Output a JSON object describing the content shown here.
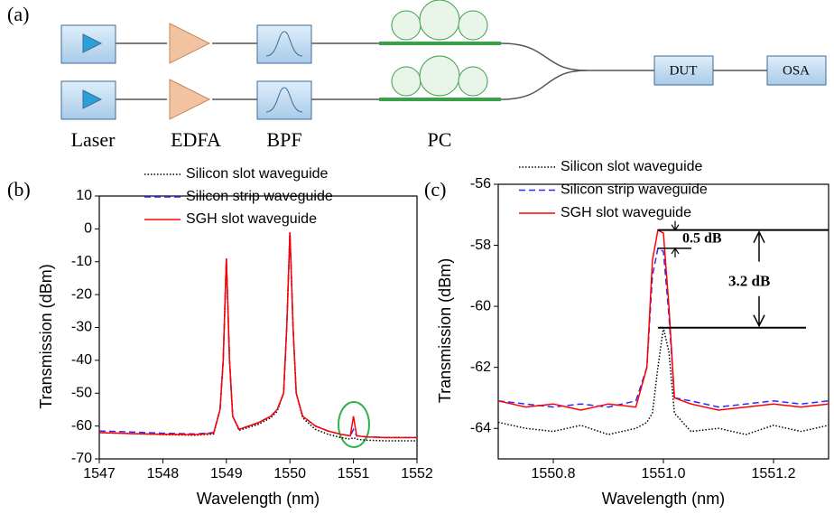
{
  "diagram": {
    "panel": "(a)",
    "components": [
      "Laser",
      "EDFA",
      "BPF",
      "PC"
    ],
    "dut": "DUT",
    "osa": "OSA"
  },
  "chart_data": [
    {
      "type": "line",
      "panel": "(b)",
      "x_label": "Wavelength (nm)",
      "y_label": "Transmission (dBm)",
      "xlim": [
        1547,
        1552
      ],
      "ylim": [
        -70,
        10
      ],
      "xticks": [
        1547,
        1548,
        1549,
        1550,
        1551,
        1552
      ],
      "yticks": [
        -70,
        -60,
        -50,
        -40,
        -30,
        -20,
        -10,
        0,
        10
      ],
      "x": [
        1547,
        1547.5,
        1548,
        1548.5,
        1548.8,
        1548.9,
        1548.95,
        1549,
        1549.05,
        1549.1,
        1549.2,
        1549.5,
        1549.7,
        1549.8,
        1549.9,
        1549.95,
        1550,
        1550.05,
        1550.1,
        1550.2,
        1550.4,
        1550.6,
        1550.8,
        1550.95,
        1551,
        1551.05,
        1551.2,
        1551.5,
        1552
      ],
      "series": [
        {
          "name": "Silicon slot waveguide",
          "color": "#000000",
          "style": "dotted",
          "values": [
            -62,
            -62.3,
            -62.6,
            -62.8,
            -62.4,
            -55,
            -40,
            -9,
            -40,
            -57,
            -61.3,
            -59.5,
            -57.5,
            -55.5,
            -50,
            -30,
            -1,
            -30,
            -50,
            -57.5,
            -61,
            -62.5,
            -63.5,
            -64,
            -63.5,
            -64,
            -64.3,
            -64.5,
            -64.5
          ]
        },
        {
          "name": "Silicon strip waveguide",
          "color": "#2a2aff",
          "style": "dashed",
          "values": [
            -61.5,
            -61.8,
            -62.2,
            -62.4,
            -62,
            -55,
            -40,
            -9,
            -40,
            -57,
            -61,
            -59,
            -57,
            -55,
            -50,
            -30,
            -1,
            -30,
            -50,
            -57,
            -60,
            -61.5,
            -62.5,
            -63,
            -61,
            -63,
            -63.3,
            -63.5,
            -63.5
          ]
        },
        {
          "name": "SGH slot waveguide",
          "color": "#ff0000",
          "style": "solid",
          "values": [
            -62,
            -62.3,
            -62.5,
            -62.6,
            -62.2,
            -55,
            -40,
            -9,
            -40,
            -57,
            -61,
            -59,
            -57,
            -55,
            -50,
            -30,
            -1,
            -30,
            -50,
            -57,
            -60,
            -61.5,
            -62.5,
            -63,
            -57,
            -63,
            -63.3,
            -63.5,
            -63.5
          ]
        }
      ]
    },
    {
      "type": "line",
      "panel": "(c)",
      "x_label": "Wavelength (nm)",
      "y_label": "Transmission (dBm)",
      "xlim": [
        1550.7,
        1551.3
      ],
      "ylim": [
        -65,
        -56
      ],
      "xticks": [
        1550.8,
        {
          "value": 1551,
          "label": "1551.0"
        },
        1551.2
      ],
      "yticks": [
        -64,
        -62,
        -60,
        -58,
        -56
      ],
      "annotations": [
        "0.5 dB",
        "3.2 dB"
      ],
      "x": [
        1550.7,
        1550.75,
        1550.8,
        1550.85,
        1550.9,
        1550.95,
        1550.97,
        1550.98,
        1550.99,
        1551,
        1551.01,
        1551.02,
        1551.05,
        1551.1,
        1551.15,
        1551.2,
        1551.25,
        1551.3
      ],
      "series": [
        {
          "name": "Silicon slot waveguide",
          "color": "#000000",
          "style": "dotted",
          "values": [
            -63.8,
            -64,
            -64.1,
            -63.9,
            -64.2,
            -64,
            -63.8,
            -63.5,
            -62,
            -60.7,
            -61.5,
            -63.5,
            -64.1,
            -64,
            -64.2,
            -63.9,
            -64.1,
            -63.9
          ]
        },
        {
          "name": "Silicon strip waveguide",
          "color": "#2a2aff",
          "style": "dashed",
          "values": [
            -63.1,
            -63.2,
            -63.3,
            -63.2,
            -63.3,
            -63.1,
            -62,
            -59,
            -58.1,
            -58.2,
            -60.3,
            -63,
            -63.1,
            -63.3,
            -63.2,
            -63.1,
            -63.2,
            -63.1
          ]
        },
        {
          "name": "SGH slot waveguide",
          "color": "#ff0000",
          "style": "solid",
          "values": [
            -63.1,
            -63.3,
            -63.2,
            -63.4,
            -63.2,
            -63.3,
            -62,
            -58.5,
            -57.5,
            -57.6,
            -60,
            -63,
            -63.2,
            -63.4,
            -63.3,
            -63.2,
            -63.3,
            -63.2
          ]
        }
      ]
    }
  ]
}
